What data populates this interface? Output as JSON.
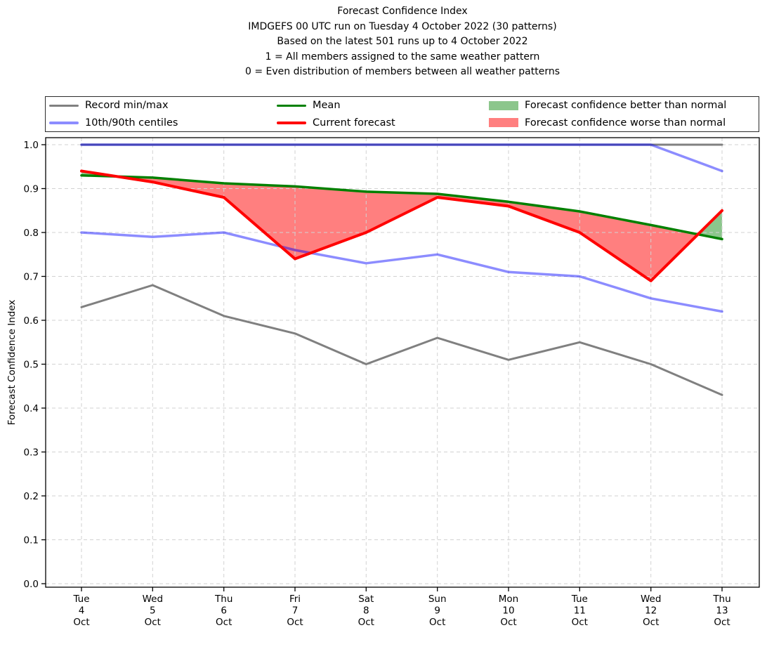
{
  "title": {
    "lines": [
      "Forecast Confidence Index",
      "IMDGEFS 00 UTC run on Tuesday 4 October 2022 (30 patterns)",
      "Based on the latest 501 runs up to 4 October 2022",
      "1 = All members assigned to the same weather pattern",
      "0 = Even distribution of members between all weather patterns"
    ]
  },
  "legend": {
    "entries": [
      {
        "type": "line",
        "label": "Record min/max",
        "color": "#808080"
      },
      {
        "type": "line",
        "label": "Mean",
        "color": "#008000"
      },
      {
        "type": "patch",
        "label": "Forecast confidence better than normal",
        "color": "rgba(0,128,0,0.45)"
      },
      {
        "type": "line",
        "label": "10th/90th centiles",
        "color": "rgba(0,0,255,0.45)"
      },
      {
        "type": "line",
        "label": "Current forecast",
        "color": "#ff0000"
      },
      {
        "type": "patch",
        "label": "Forecast confidence worse than normal",
        "color": "rgba(255,0,0,0.5)"
      }
    ]
  },
  "chart_data": {
    "type": "line",
    "title": "Forecast Confidence Index",
    "subtitle": "IMDGEFS 00 UTC run on Tuesday 4 October 2022 (30 patterns)",
    "xlabel": "",
    "ylabel": "Forecast Confidence Index",
    "ylim": [
      0.0,
      1.0
    ],
    "yticks": [
      0.0,
      0.1,
      0.2,
      0.3,
      0.4,
      0.5,
      0.6,
      0.7,
      0.8,
      0.9,
      1.0
    ],
    "grid": true,
    "legend_position": "top-full-width-3-columns",
    "categories": [
      [
        "Tue",
        "4",
        "Oct"
      ],
      [
        "Wed",
        "5",
        "Oct"
      ],
      [
        "Thu",
        "6",
        "Oct"
      ],
      [
        "Fri",
        "7",
        "Oct"
      ],
      [
        "Sat",
        "8",
        "Oct"
      ],
      [
        "Sun",
        "9",
        "Oct"
      ],
      [
        "Mon",
        "10",
        "Oct"
      ],
      [
        "Tue",
        "11",
        "Oct"
      ],
      [
        "Wed",
        "12",
        "Oct"
      ],
      [
        "Thu",
        "13",
        "Oct"
      ]
    ],
    "series": [
      {
        "name": "Record max",
        "slug": "record-max",
        "color": "#808080",
        "opacity": 1,
        "width": 3,
        "values": [
          1.0,
          1.0,
          1.0,
          1.0,
          1.0,
          1.0,
          1.0,
          1.0,
          1.0,
          1.0
        ]
      },
      {
        "name": "Record min",
        "slug": "record-min",
        "color": "#808080",
        "opacity": 1,
        "width": 3,
        "values": [
          0.63,
          0.68,
          0.61,
          0.57,
          0.5,
          0.56,
          0.51,
          0.55,
          0.5,
          0.43
        ]
      },
      {
        "name": "90th centile",
        "slug": "centile-90th",
        "color": "#0000ff",
        "opacity": 0.45,
        "width": 3.5,
        "values": [
          1.0,
          1.0,
          1.0,
          1.0,
          1.0,
          1.0,
          1.0,
          1.0,
          1.0,
          0.94
        ]
      },
      {
        "name": "10th centile",
        "slug": "centile-10th",
        "color": "#0000ff",
        "opacity": 0.45,
        "width": 3.5,
        "values": [
          0.8,
          0.79,
          0.8,
          0.76,
          0.73,
          0.75,
          0.71,
          0.7,
          0.65,
          0.62
        ]
      },
      {
        "name": "Mean",
        "slug": "mean",
        "color": "#008000",
        "opacity": 1,
        "width": 3.5,
        "values": [
          0.93,
          0.925,
          0.912,
          0.905,
          0.893,
          0.888,
          0.87,
          0.848,
          0.817,
          0.785
        ]
      },
      {
        "name": "Current forecast",
        "slug": "current-forecast",
        "color": "#ff0000",
        "opacity": 1,
        "width": 4,
        "values": [
          0.94,
          0.915,
          0.88,
          0.74,
          0.8,
          0.88,
          0.86,
          0.8,
          0.69,
          0.85
        ]
      }
    ],
    "fills": [
      {
        "data_name": "better-than-normal-fill",
        "between": [
          "Current forecast",
          "Mean"
        ],
        "where": "current_above_mean",
        "color": "rgba(0,128,0,0.45)"
      },
      {
        "data_name": "worse-than-normal-fill",
        "between": [
          "Current forecast",
          "Mean"
        ],
        "where": "current_below_mean",
        "color": "rgba(255,0,0,0.5)"
      }
    ]
  }
}
